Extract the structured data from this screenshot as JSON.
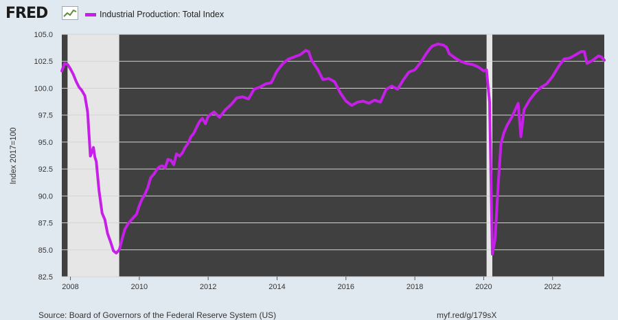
{
  "header": {
    "logo_text": "FRED",
    "logo_icon": "fred-chart-icon",
    "legend_label": "Industrial Production: Total Index",
    "legend_color": "#c620e8"
  },
  "footer": {
    "source": "Source: Board of Governors of the Federal Reserve System (US)",
    "short_url": "myf.red/g/179sX"
  },
  "chart_data": {
    "type": "line",
    "title": "",
    "ylabel": "Index 2017=100",
    "xlabel": "",
    "ylim": [
      82.5,
      105.0
    ],
    "xlim": [
      2007.75,
      2023.5
    ],
    "grid": true,
    "legend_position": "top-left",
    "plot_background": "#404040",
    "recession_shading_color": "#e6e6e6",
    "line_color": "#c620e8",
    "y_ticks": [
      "82.5",
      "85.0",
      "87.5",
      "90.0",
      "92.5",
      "95.0",
      "97.5",
      "100.0",
      "102.5",
      "105.0"
    ],
    "x_ticks": [
      "2008",
      "2010",
      "2012",
      "2014",
      "2016",
      "2018",
      "2020",
      "2022"
    ],
    "recessions": [
      {
        "start": 2007.917,
        "end": 2009.417
      },
      {
        "start": 2020.083,
        "end": 2020.25
      }
    ],
    "series": [
      {
        "name": "Industrial Production: Total Index",
        "x": [
          2007.75,
          2007.83,
          2007.92,
          2008.0,
          2008.08,
          2008.17,
          2008.25,
          2008.33,
          2008.42,
          2008.5,
          2008.58,
          2008.67,
          2008.71,
          2008.75,
          2008.83,
          2008.92,
          2009.0,
          2009.08,
          2009.17,
          2009.25,
          2009.33,
          2009.42,
          2009.5,
          2009.58,
          2009.67,
          2009.75,
          2009.83,
          2009.92,
          2010.0,
          2010.08,
          2010.17,
          2010.25,
          2010.33,
          2010.42,
          2010.5,
          2010.58,
          2010.67,
          2010.75,
          2010.83,
          2010.92,
          2011.0,
          2011.08,
          2011.17,
          2011.25,
          2011.33,
          2011.42,
          2011.5,
          2011.58,
          2011.67,
          2011.75,
          2011.83,
          2011.92,
          2012.0,
          2012.17,
          2012.33,
          2012.5,
          2012.67,
          2012.83,
          2013.0,
          2013.17,
          2013.33,
          2013.5,
          2013.67,
          2013.83,
          2014.0,
          2014.17,
          2014.33,
          2014.5,
          2014.67,
          2014.83,
          2014.92,
          2015.0,
          2015.17,
          2015.33,
          2015.5,
          2015.67,
          2015.83,
          2016.0,
          2016.17,
          2016.33,
          2016.5,
          2016.67,
          2016.83,
          2017.0,
          2017.17,
          2017.33,
          2017.5,
          2017.67,
          2017.83,
          2018.0,
          2018.17,
          2018.33,
          2018.42,
          2018.5,
          2018.67,
          2018.83,
          2018.92,
          2019.0,
          2019.17,
          2019.33,
          2019.5,
          2019.67,
          2019.83,
          2020.0,
          2020.08,
          2020.17,
          2020.25,
          2020.33,
          2020.42,
          2020.5,
          2020.58,
          2020.67,
          2020.83,
          2021.0,
          2021.08,
          2021.17,
          2021.33,
          2021.5,
          2021.67,
          2021.83,
          2022.0,
          2022.17,
          2022.33,
          2022.5,
          2022.67,
          2022.83,
          2022.92,
          2023.0,
          2023.17,
          2023.33,
          2023.42,
          2023.5
        ],
        "values": [
          101.6,
          102.3,
          102.2,
          101.8,
          101.3,
          100.6,
          100.1,
          99.8,
          99.3,
          97.8,
          93.7,
          94.5,
          93.6,
          93.2,
          90.5,
          88.4,
          87.8,
          86.5,
          85.7,
          84.9,
          84.7,
          85.0,
          86.0,
          86.9,
          87.4,
          87.7,
          88.0,
          88.3,
          89.1,
          89.7,
          90.2,
          90.8,
          91.7,
          92.0,
          92.4,
          92.7,
          92.8,
          92.6,
          93.4,
          93.3,
          92.9,
          93.9,
          93.7,
          94.0,
          94.5,
          94.9,
          95.5,
          95.8,
          96.4,
          96.9,
          97.2,
          96.7,
          97.4,
          97.8,
          97.3,
          98.0,
          98.5,
          99.1,
          99.2,
          99.0,
          99.9,
          100.1,
          100.4,
          100.5,
          101.6,
          102.3,
          102.7,
          102.9,
          103.1,
          103.5,
          103.4,
          102.6,
          101.8,
          100.8,
          100.9,
          100.6,
          99.6,
          98.8,
          98.4,
          98.7,
          98.8,
          98.6,
          98.9,
          98.7,
          99.9,
          100.2,
          99.9,
          100.8,
          101.5,
          101.7,
          102.4,
          103.2,
          103.6,
          103.9,
          104.1,
          104.0,
          103.8,
          103.2,
          102.8,
          102.5,
          102.3,
          102.2,
          102.0,
          101.6,
          101.7,
          98.7,
          84.6,
          86.0,
          91.0,
          94.8,
          95.8,
          96.5,
          97.4,
          98.6,
          95.5,
          98.0,
          98.9,
          99.6,
          100.1,
          100.4,
          101.1,
          102.0,
          102.7,
          102.8,
          103.1,
          103.4,
          103.4,
          102.3,
          102.6,
          103.0,
          102.9,
          102.6
        ]
      }
    ]
  }
}
